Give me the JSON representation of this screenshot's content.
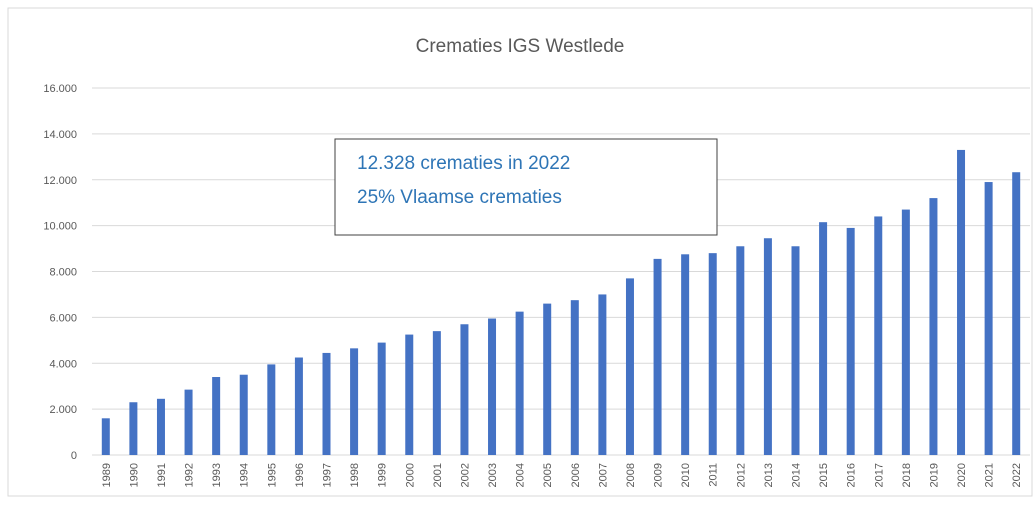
{
  "chart_data": {
    "type": "bar",
    "title": "Crematies IGS Westlede",
    "categories": [
      "1989",
      "1990",
      "1991",
      "1992",
      "1993",
      "1994",
      "1995",
      "1996",
      "1997",
      "1998",
      "1999",
      "2000",
      "2001",
      "2002",
      "2003",
      "2004",
      "2005",
      "2006",
      "2007",
      "2008",
      "2009",
      "2010",
      "2011",
      "2012",
      "2013",
      "2014",
      "2015",
      "2016",
      "2017",
      "2018",
      "2019",
      "2020",
      "2021",
      "2022"
    ],
    "values": [
      1600,
      2300,
      2450,
      2850,
      3400,
      3500,
      3950,
      4250,
      4450,
      4650,
      4900,
      5250,
      5400,
      5700,
      5950,
      6250,
      6600,
      6750,
      7000,
      7700,
      8550,
      8750,
      8800,
      9100,
      9450,
      9100,
      10150,
      9900,
      10400,
      10700,
      11200,
      13300,
      11900,
      12328
    ],
    "color": "#4472c4",
    "ylim": [
      0,
      16000
    ],
    "yticks": [
      0,
      {
        "value": 2000,
        "label": "2.000"
      },
      {
        "value": 4000,
        "label": "4.000"
      },
      {
        "value": 6000,
        "label": "6.000"
      },
      {
        "value": 8000,
        "label": "8.000"
      },
      {
        "value": 10000,
        "label": "10.000"
      },
      {
        "value": 12000,
        "label": "12.000"
      },
      {
        "value": 14000,
        "label": "14.000"
      },
      {
        "value": 16000,
        "label": "16.000"
      }
    ],
    "grid": true,
    "annotations": [
      "12.328 crematies in 2022",
      "25% Vlaamse crematies"
    ]
  }
}
